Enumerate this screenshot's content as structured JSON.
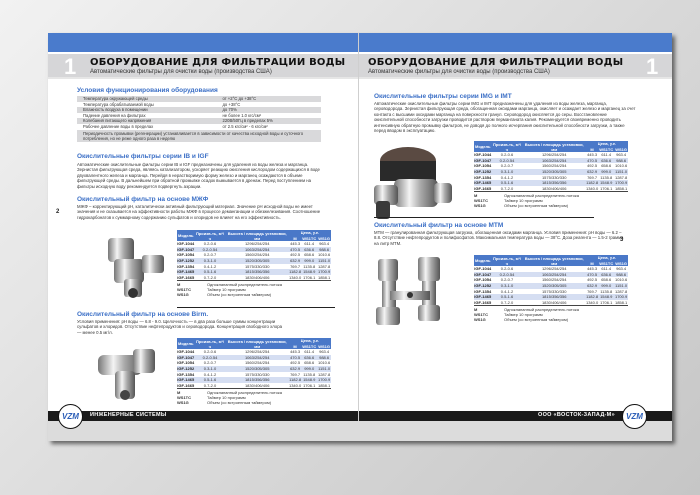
{
  "header": {
    "number": "1",
    "title": "ОБОРУДОВАНИЕ ДЛЯ ФИЛЬТРАЦИИ ВОДЫ",
    "subtitle": "Автоматические фильтры для очистки воды (производства США)"
  },
  "colors": {
    "band": "#4a7bcc",
    "table_header": "#4a78c8",
    "table_alt_row": "#d5def2",
    "heading": "#3b6fc6"
  },
  "left": {
    "page_number": "2",
    "conditions": {
      "heading": "Условия функционирования оборудования",
      "rows": [
        [
          "Температура окружающей среды",
          "от +2°С до +38°С"
        ],
        [
          "Температура обрабатываемой воды",
          "до +38°С"
        ],
        [
          "Влажность воздуха в помещении",
          "до 70%"
        ],
        [
          "Падение давления на фильтрах",
          "не более 1.0 кгс/см²"
        ],
        [
          "Колебания питающего напряжения",
          "220В/50Гц в пределах 5%"
        ],
        [
          "Рабочее давление воды в пределах",
          "от 2.5 кгс/см² - 6 кгс/см²"
        ]
      ],
      "note": "Периодичность промывки (регенерации) устанавливается в зависимости от качества исходной воды и суточного потребления, но не реже одного раза в неделю"
    },
    "ib": {
      "heading": "Окислительные фильтры серии IB и IGF",
      "text": "Автоматические окислительные фильтры серии IB и IGF предназначены для удаления из воды железа и марганца. Зернистая фильтрующая среда, являясь катализатором, ускоряет реакцию окисления кислородом содержащихся в воде двухвалентного железа и марганца. Перейдя в нерастворимую форму железо и марганец осаждаются в объеме фильтрующей среды. В дальнейшем при обратной промывке осадок вымывается в дренаж. Перед поступлением на фильтры исходную воду рекомендуется подвергнуть аэрации."
    },
    "mzhf": {
      "heading": "Окислительный фильтр на основе МЖФ",
      "text": "МЖФ – корректирующий pH, каталитически активный фильтрующий материал. Значение pH исходной воды не имеет значения и не сказывается на эффективности работы МЖФ в процессе деманганации и обезжелезивания. Соотношение гидрокарбонатов к суммарному содержанию сульфатов и хлоридов не влияет на его эффективность."
    },
    "birm": {
      "heading": "Окислительный фильтр на основе Birm.",
      "text": "Условия применения: pH воды — 6.8 - 9.0. Щелочность — в два раза больше суммы концентрации сульфатов и хлоридов. Отсутствие нефтепродуктов и сероводорода. Концентрация свободного хлора — менее 0.5 мг/л."
    },
    "footer": "ИНЖЕНЕРНЫЕ СИСТЕМЫ"
  },
  "right": {
    "page_number": "3",
    "img": {
      "heading": "Окислительные фильтры серии IMG и IMT",
      "text": "Автоматические окислительные фильтры серии IMG и IMT предназначены для удаления из воды железа, марганца, сероводорода. Зернистая фильтрующая среда, обогащенная оксидами марганца, окисляет и осаждает железо и марганец за счет контакта с высшими оксидами марганца на поверхности гранул. Сероводород окисляется до серы. Восстановление окислительной способности загрузки проводится раствором перманганата калия. Рекомендуется своевременно проводить интенсивную обратную промывку фильтров, не доводя до полного исчерпания окислительной способности загрузки, а также перед вводом в эксплуатацию."
    },
    "mtm": {
      "heading": "Окислительный фильтр на основе MTM",
      "text": "MTM — гранулированная фильтрующая загрузка, обогащенная оксидами марганца. Условия применения: pH воды — 6.2 – 8.8. Отсутствие нефтепродуктов и полифосфатов. Максимальная температура воды — 38°С. Доза реагента — 1.5-2 грамма на литр MTM."
    },
    "footer": "ООО «ВОСТОК-ЗАПАД-М»"
  },
  "logo": "VZM",
  "product_table": {
    "headers": {
      "model": "Модель",
      "flow": "Произв-ть, м³/ч",
      "size": "Высота / площадь установки, мм",
      "price": "Цена, у.е.",
      "m": "M",
      "ws1tc": "WS1TC",
      "ws1g": "WS1G"
    },
    "rows": [
      [
        "IGF-1044",
        "0.2-0.6",
        "1296/254/254",
        "445.3",
        "611.4",
        "963.4"
      ],
      [
        "IGF-1047",
        "0.2-0.54",
        "1063/254/254",
        "470.5",
        "636.6",
        "988.6"
      ],
      [
        "IGF-1054",
        "0.2-0.7",
        "1560/254/254",
        "492.5",
        "658.6",
        "1010.6"
      ],
      [
        "IGF-1252",
        "0.3-1.0",
        "1520/305/305",
        "632.9",
        "999.0",
        "1151.0"
      ],
      [
        "IGF-1354",
        "0.4-1.2",
        "1575/330/330",
        "769.7",
        "1135.8",
        "1287.8"
      ],
      [
        "IGF-1465",
        "0.5-1.6",
        "1815/356/356",
        "1182.8",
        "1548.9",
        "1700.9"
      ],
      [
        "IGF-1665",
        "0.7-2.0",
        "1830/406/406",
        "1340.0",
        "1706.1",
        "1858.1"
      ]
    ],
    "notes": [
      [
        "M",
        "Одноклапанный распределитель потока"
      ],
      [
        "WS1TC",
        "Таймер 10 программ"
      ],
      [
        "WS1G",
        "Объем (со встроенным таймером)"
      ]
    ]
  }
}
